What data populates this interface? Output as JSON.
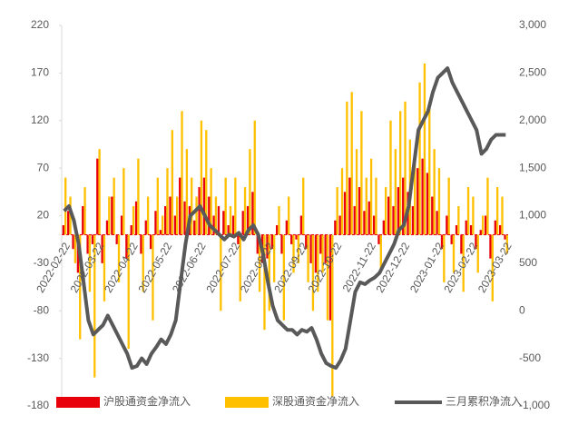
{
  "chart_data": {
    "type": "bar_line",
    "categories": [
      "2022-02-22",
      null,
      null,
      null,
      null,
      null,
      null,
      "2022-03-22",
      null,
      null,
      null,
      null,
      null,
      null,
      "2022-04-22",
      null,
      null,
      null,
      null,
      null,
      null,
      "2022-05-22",
      null,
      null,
      null,
      null,
      null,
      null,
      "2022-06-22",
      null,
      null,
      null,
      null,
      null,
      null,
      "2022-07-22",
      null,
      null,
      null,
      null,
      null,
      null,
      "2022-08-22",
      null,
      null,
      null,
      null,
      null,
      null,
      "2022-09-22",
      null,
      null,
      null,
      null,
      null,
      null,
      "2022-10-22",
      null,
      null,
      null,
      null,
      null,
      null,
      "2022-11-22",
      null,
      null,
      null,
      null,
      null,
      null,
      "2022-12-22",
      null,
      null,
      null,
      null,
      null,
      null,
      "2023-01-22",
      null,
      null,
      null,
      null,
      null,
      null,
      "2023-02-22",
      null,
      null,
      null,
      null,
      null,
      null,
      "2023-03-22"
    ],
    "series": [
      {
        "name": "沪股通资金净流入",
        "color": "#e8000b",
        "kind": "bar",
        "values": [
          10,
          25,
          -15,
          -40,
          30,
          -20,
          -10,
          80,
          -30,
          15,
          40,
          -10,
          20,
          -25,
          10,
          35,
          -20,
          15,
          -15,
          25,
          5,
          30,
          40,
          20,
          60,
          35,
          30,
          15,
          50,
          60,
          40,
          20,
          30,
          25,
          10,
          20,
          -10,
          25,
          30,
          45,
          -20,
          -30,
          -25,
          -15,
          10,
          -20,
          15,
          -10,
          -5,
          20,
          -15,
          -30,
          -40,
          -20,
          -30,
          -90,
          15,
          20,
          45,
          60,
          30,
          50,
          25,
          35,
          20,
          -10,
          15,
          40,
          30,
          50,
          60,
          45,
          30,
          70,
          80,
          65,
          40,
          25,
          -15,
          20,
          -10,
          10,
          -20,
          15,
          10,
          -15,
          5,
          20,
          -25,
          15,
          10,
          -5
        ]
      },
      {
        "name": "深股通资金净流入",
        "color": "#ffc000",
        "kind": "bar",
        "values": [
          60,
          40,
          -30,
          -110,
          50,
          -60,
          -150,
          90,
          -70,
          40,
          60,
          -50,
          70,
          -120,
          30,
          80,
          -60,
          40,
          -90,
          60,
          20,
          70,
          110,
          40,
          130,
          90,
          60,
          40,
          120,
          110,
          70,
          40,
          -80,
          60,
          30,
          60,
          -70,
          50,
          90,
          120,
          -60,
          -100,
          -80,
          -50,
          30,
          -90,
          40,
          -40,
          -30,
          60,
          -50,
          -80,
          -60,
          -40,
          -90,
          -170,
          50,
          70,
          140,
          150,
          90,
          130,
          60,
          80,
          60,
          -40,
          50,
          120,
          90,
          130,
          140,
          100,
          80,
          160,
          180,
          140,
          90,
          70,
          -50,
          60,
          -40,
          30,
          -60,
          50,
          40,
          -40,
          20,
          60,
          -70,
          50,
          40,
          -20
        ]
      },
      {
        "name": "三月累积净流入",
        "color": "#595959",
        "kind": "line",
        "axis": "y2",
        "values": [
          1050,
          1100,
          950,
          700,
          300,
          -100,
          -250,
          -200,
          -150,
          -50,
          -150,
          -250,
          -350,
          -450,
          -600,
          -580,
          -500,
          -560,
          -450,
          -380,
          -300,
          -350,
          -250,
          -100,
          300,
          700,
          1000,
          1050,
          1100,
          1000,
          900,
          850,
          800,
          750,
          800,
          780,
          820,
          750,
          850,
          900,
          800,
          600,
          300,
          50,
          -100,
          -150,
          -200,
          -200,
          -250,
          -200,
          -220,
          -180,
          -300,
          -450,
          -550,
          -580,
          -600,
          -520,
          -400,
          -100,
          200,
          300,
          280,
          320,
          350,
          400,
          500,
          600,
          700,
          850,
          900,
          1100,
          1500,
          1900,
          2000,
          2100,
          2300,
          2450,
          2500,
          2550,
          2400,
          2300,
          2200,
          2100,
          2000,
          1900,
          1650,
          1700,
          1800,
          1850,
          1850,
          1850
        ]
      }
    ],
    "ylim": [
      -180,
      220
    ],
    "yticks": [
      -180,
      -130,
      -80,
      -30,
      20,
      70,
      120,
      170,
      220
    ],
    "y2lim": [
      -1000,
      3000
    ],
    "y2ticks": [
      {
        "value": -1000,
        "label": "-1,000"
      },
      -500,
      0,
      500,
      {
        "value": 1000,
        "label": "1,000"
      },
      {
        "value": 1500,
        "label": "1,500"
      },
      {
        "value": 2000,
        "label": "2,000"
      },
      {
        "value": 2500,
        "label": "2,500"
      },
      {
        "value": 3000,
        "label": "3,000"
      }
    ],
    "grid": false,
    "legend": "bottom"
  }
}
